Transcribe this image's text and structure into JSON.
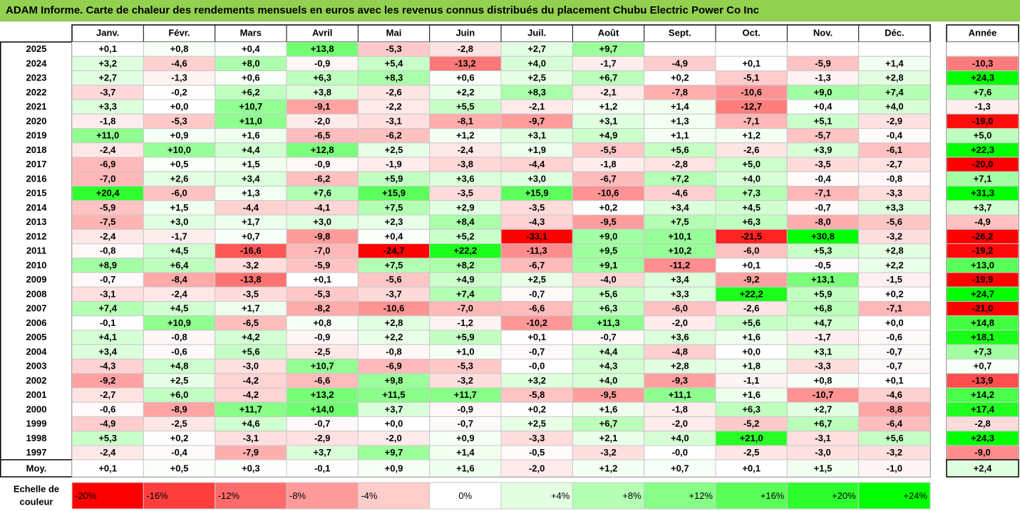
{
  "title": "ADAM Informe. Carte de chaleur des rendements mensuels en euros avec les revenus connus distribués du placement Chubu Electric Power Co Inc",
  "chart_data": {
    "type": "heatmap",
    "month_labels": [
      "Janv.",
      "Févr.",
      "Mars",
      "Avril",
      "Mai",
      "Juin",
      "Juil.",
      "Août",
      "Sept.",
      "Oct.",
      "Nov.",
      "Déc."
    ],
    "year_column_label": "Année",
    "average_row_label": "Moy.",
    "rows": [
      {
        "year": "2025",
        "months": [
          "+0,1",
          "+0,8",
          "+0,4",
          "+13,8",
          "-5,3",
          "-2,8",
          "+2,7",
          "+9,7",
          "",
          "",
          "",
          ""
        ],
        "annual": ""
      },
      {
        "year": "2024",
        "months": [
          "+3,2",
          "-4,6",
          "+8,0",
          "-0,9",
          "+5,4",
          "-13,2",
          "+4,0",
          "-1,7",
          "-4,9",
          "+0,1",
          "-5,9",
          "+1,4"
        ],
        "annual": "-10,3"
      },
      {
        "year": "2023",
        "months": [
          "+2,7",
          "-1,3",
          "+0,6",
          "+6,3",
          "+8,3",
          "+0,6",
          "+2,5",
          "+6,7",
          "+0,2",
          "-5,1",
          "-1,3",
          "+2,8"
        ],
        "annual": "+24,3"
      },
      {
        "year": "2022",
        "months": [
          "-3,7",
          "-0,2",
          "+6,2",
          "+3,8",
          "-2,6",
          "+2,2",
          "+8,3",
          "-2,1",
          "-7,8",
          "-10,6",
          "+9,0",
          "+7,4"
        ],
        "annual": "+7,6"
      },
      {
        "year": "2021",
        "months": [
          "+3,3",
          "+0,0",
          "+10,7",
          "-9,1",
          "-2,2",
          "+5,5",
          "-2,1",
          "+1,2",
          "+1,4",
          "-12,7",
          "+0,4",
          "+4,0"
        ],
        "annual": "-1,3"
      },
      {
        "year": "2020",
        "months": [
          "-1,8",
          "-5,3",
          "+11,0",
          "-2,0",
          "-3,1",
          "-8,1",
          "-9,7",
          "+3,1",
          "+1,3",
          "-7,1",
          "+5,1",
          "-2,9"
        ],
        "annual": "-19,0"
      },
      {
        "year": "2019",
        "months": [
          "+11,0",
          "+0,9",
          "+1,6",
          "-6,5",
          "-6,2",
          "+1,2",
          "+3,1",
          "+4,9",
          "+1,1",
          "+1,2",
          "-5,7",
          "-0,4"
        ],
        "annual": "+5,0"
      },
      {
        "year": "2018",
        "months": [
          "-2,4",
          "+10,0",
          "+4,4",
          "+12,8",
          "+2,5",
          "-2,4",
          "+1,9",
          "-5,5",
          "+5,6",
          "-2,6",
          "+3,9",
          "-6,1"
        ],
        "annual": "+22,3"
      },
      {
        "year": "2017",
        "months": [
          "-6,9",
          "+0,5",
          "+1,5",
          "-0,9",
          "-1,9",
          "-3,8",
          "-4,4",
          "-1,8",
          "-2,8",
          "+5,0",
          "-3,5",
          "-2,7"
        ],
        "annual": "-20,0"
      },
      {
        "year": "2016",
        "months": [
          "-7,0",
          "+2,6",
          "+3,4",
          "-6,2",
          "+5,9",
          "+3,6",
          "+3,0",
          "-6,7",
          "+7,2",
          "+4,0",
          "-0,4",
          "-0,8"
        ],
        "annual": "+7,1"
      },
      {
        "year": "2015",
        "months": [
          "+20,4",
          "-6,0",
          "+1,3",
          "+7,6",
          "+15,9",
          "-3,5",
          "+15,9",
          "-10,6",
          "-4,6",
          "+7,3",
          "-7,1",
          "-3,3"
        ],
        "annual": "+31,3"
      },
      {
        "year": "2014",
        "months": [
          "-5,9",
          "+1,5",
          "-4,4",
          "-4,1",
          "+7,5",
          "+2,9",
          "-3,5",
          "+0,2",
          "+3,4",
          "+4,5",
          "-0,7",
          "+3,3"
        ],
        "annual": "+3,7"
      },
      {
        "year": "2013",
        "months": [
          "-7,5",
          "+3,0",
          "+1,7",
          "+3,0",
          "+2,3",
          "+8,4",
          "-4,3",
          "-9,5",
          "+7,5",
          "+6,3",
          "-8,0",
          "-5,6"
        ],
        "annual": "-4,9"
      },
      {
        "year": "2012",
        "months": [
          "-2,4",
          "-1,7",
          "+0,7",
          "-9,8",
          "+0,4",
          "+5,2",
          "-33,1",
          "+9,0",
          "+10,1",
          "-21,5",
          "+30,8",
          "-3,2"
        ],
        "annual": "-26,2"
      },
      {
        "year": "2011",
        "months": [
          "-0,8",
          "+4,5",
          "-16,6",
          "-7,0",
          "-24,7",
          "+22,2",
          "-11,3",
          "+9,5",
          "+10,2",
          "-6,0",
          "+5,3",
          "+2,8"
        ],
        "annual": "-19,2"
      },
      {
        "year": "2010",
        "months": [
          "+8,9",
          "+6,4",
          "-3,2",
          "-5,9",
          "+7,5",
          "+8,2",
          "-6,7",
          "+9,1",
          "-11,2",
          "+0,1",
          "-0,5",
          "+2,2"
        ],
        "annual": "+13,0"
      },
      {
        "year": "2009",
        "months": [
          "-0,7",
          "-8,4",
          "-13,8",
          "+0,1",
          "-5,6",
          "+4,9",
          "+2,5",
          "-4,0",
          "+3,4",
          "-9,2",
          "+13,1",
          "-1,5"
        ],
        "annual": "-19,9"
      },
      {
        "year": "2008",
        "months": [
          "-3,1",
          "-2,4",
          "-3,5",
          "-5,3",
          "-3,7",
          "+7,4",
          "-0,7",
          "+5,6",
          "+3,3",
          "+22,2",
          "+5,9",
          "+0,2"
        ],
        "annual": "+24,7"
      },
      {
        "year": "2007",
        "months": [
          "+7,4",
          "+4,5",
          "+1,7",
          "-8,2",
          "-10,6",
          "-7,0",
          "-6,6",
          "+6,3",
          "-6,0",
          "-2,6",
          "+6,8",
          "-7,1"
        ],
        "annual": "-21,0"
      },
      {
        "year": "2006",
        "months": [
          "-0,1",
          "+10,9",
          "-6,5",
          "+0,8",
          "+2,8",
          "-1,2",
          "-10,2",
          "+11,3",
          "-2,0",
          "+5,6",
          "+4,7",
          "+0,0"
        ],
        "annual": "+14,8"
      },
      {
        "year": "2005",
        "months": [
          "+4,1",
          "-0,8",
          "+4,2",
          "-0,9",
          "+2,2",
          "+5,9",
          "+0,1",
          "-0,7",
          "+3,6",
          "+1,6",
          "-1,7",
          "-0,6"
        ],
        "annual": "+18,1"
      },
      {
        "year": "2004",
        "months": [
          "+3,4",
          "-0,6",
          "+5,6",
          "-2,5",
          "-0,8",
          "+1,0",
          "-0,7",
          "+4,4",
          "-4,8",
          "+0,0",
          "+3,1",
          "-0,7"
        ],
        "annual": "+7,3"
      },
      {
        "year": "2003",
        "months": [
          "-4,3",
          "+4,8",
          "-3,0",
          "+10,7",
          "-6,9",
          "-5,3",
          "-0,0",
          "+4,3",
          "+2,8",
          "+1,8",
          "-3,3",
          "-0,7"
        ],
        "annual": "+0,7"
      },
      {
        "year": "2002",
        "months": [
          "-9,2",
          "+2,5",
          "-4,2",
          "-6,6",
          "+9,8",
          "-3,2",
          "+3,2",
          "+4,0",
          "-9,3",
          "-1,1",
          "+0,8",
          "+0,1"
        ],
        "annual": "-13,9"
      },
      {
        "year": "2001",
        "months": [
          "-2,7",
          "+6,0",
          "-4,2",
          "+13,2",
          "+11,5",
          "+11,7",
          "-5,8",
          "-9,5",
          "+11,1",
          "+1,6",
          "-10,7",
          "-4,6"
        ],
        "annual": "+14,2"
      },
      {
        "year": "2000",
        "months": [
          "-0,6",
          "-8,9",
          "+11,7",
          "+14,0",
          "+3,7",
          "-0,9",
          "+0,2",
          "+1,6",
          "-1,8",
          "+6,3",
          "+2,7",
          "-8,8"
        ],
        "annual": "+17,4"
      },
      {
        "year": "1999",
        "months": [
          "-4,9",
          "-2,5",
          "+4,6",
          "-0,7",
          "+0,0",
          "-0,7",
          "+2,5",
          "+6,7",
          "-2,0",
          "-5,2",
          "+6,7",
          "-6,4"
        ],
        "annual": "-2,8"
      },
      {
        "year": "1998",
        "months": [
          "+5,3",
          "+0,2",
          "-3,1",
          "-2,9",
          "-2,0",
          "+0,9",
          "-3,3",
          "+2,1",
          "+4,0",
          "+21,0",
          "-3,1",
          "+5,6"
        ],
        "annual": "+24,3"
      },
      {
        "year": "1997",
        "months": [
          "-2,4",
          "-0,4",
          "-7,9",
          "+3,7",
          "+9,7",
          "+1,4",
          "-0,5",
          "-3,2",
          "-0,0",
          "-2,5",
          "-3,0",
          "-3,2"
        ],
        "annual": "-9,0"
      }
    ],
    "averages": {
      "months": [
        "+0,1",
        "+0,5",
        "+0,3",
        "-0,1",
        "+0,9",
        "+1,6",
        "-2,0",
        "+1,2",
        "+0,7",
        "+0,1",
        "+1,5",
        "-1,0"
      ],
      "annual": "+2,4"
    },
    "legend": {
      "label": "Echelle de couleur",
      "stops": [
        {
          "text": "-20%",
          "value": -20,
          "align": "left",
          "color": "#ff0000"
        },
        {
          "text": "-16%",
          "value": -16,
          "align": "left",
          "color": "#ff3d3d"
        },
        {
          "text": "-12%",
          "value": -12,
          "align": "left",
          "color": "#ff6b6b"
        },
        {
          "text": "-8%",
          "value": -8,
          "align": "left",
          "color": "#ff9a9a"
        },
        {
          "text": "-4%",
          "value": -4,
          "align": "left",
          "color": "#ffcccc"
        },
        {
          "text": "0%",
          "value": 0,
          "align": "center",
          "color": "#ffffff"
        },
        {
          "text": "+4%",
          "value": 4,
          "align": "right",
          "color": "#e2ffe2"
        },
        {
          "text": "+8%",
          "value": 8,
          "align": "right",
          "color": "#b4ffb4"
        },
        {
          "text": "+12%",
          "value": 12,
          "align": "right",
          "color": "#87ff87"
        },
        {
          "text": "+16%",
          "value": 16,
          "align": "right",
          "color": "#5aff5a"
        },
        {
          "text": "+20%",
          "value": 20,
          "align": "right",
          "color": "#2dff2d"
        },
        {
          "text": "+24%",
          "value": 24,
          "align": "right",
          "color": "#00ff00"
        }
      ]
    },
    "colors": {
      "title_background": "#92d050",
      "negative_max": "#ff0000",
      "positive_max": "#00ff00",
      "neutral": "#ffffff",
      "grid": "#c8c8c8",
      "border": "#000000"
    }
  }
}
